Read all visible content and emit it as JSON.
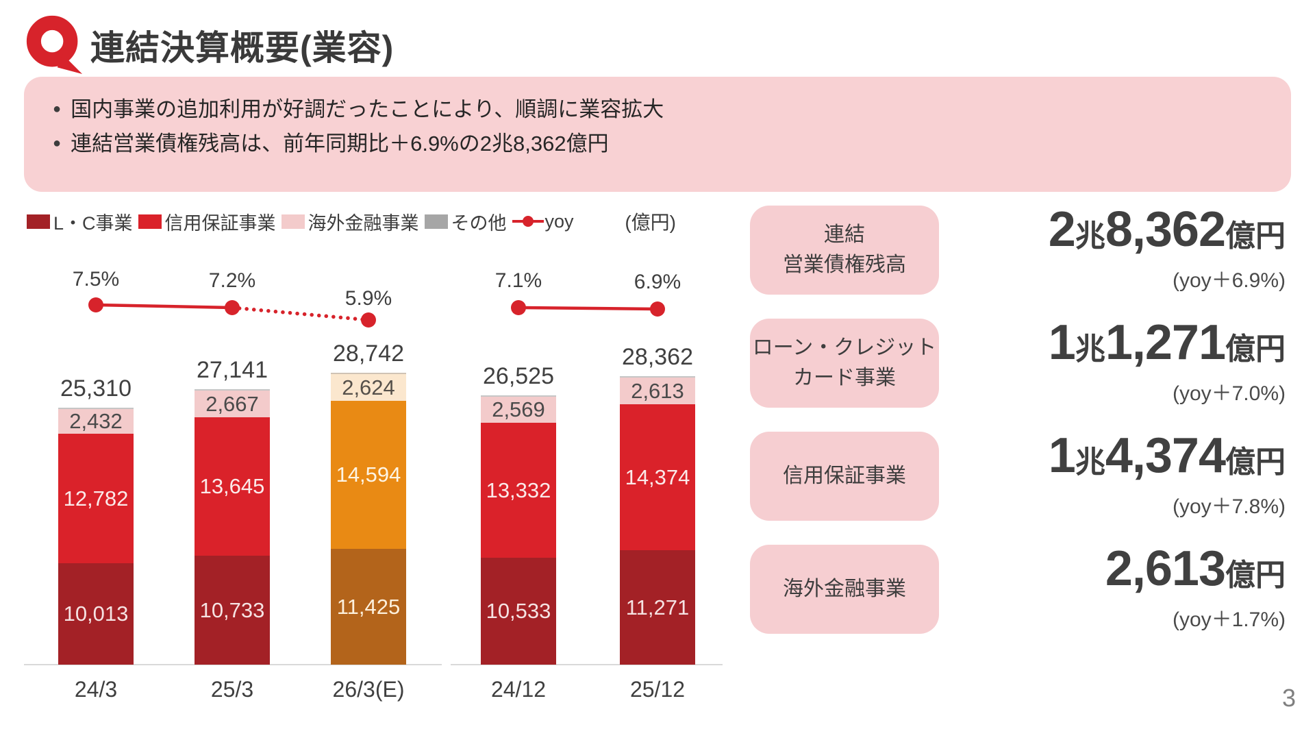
{
  "page": {
    "title": "連結決算概要(業容)",
    "page_number": "3"
  },
  "banner": {
    "bullets": [
      "国内事業の追加利用が好調だったことにより、順調に業容拡大",
      "連結営業債権残高は、前年同期比＋6.9%の2兆8,362億円"
    ]
  },
  "colors": {
    "accent_red": "#d7232b",
    "banner_pink": "#f8d1d3",
    "card_pink": "#f6ced1"
  },
  "chart_data": {
    "type": "bar",
    "stacked": true,
    "unit_label": "(億円)",
    "legend": [
      {
        "label": "L・C事業",
        "color": "#a32126",
        "marker": "square"
      },
      {
        "label": "信用保証事業",
        "color": "#da222a",
        "marker": "square"
      },
      {
        "label": "海外金融事業",
        "color": "#f3cbcb",
        "marker": "square"
      },
      {
        "label": "その他",
        "color": "#a6a6a6",
        "marker": "square"
      },
      {
        "label": "yoy",
        "color": "#d7232b",
        "marker": "line-dot"
      }
    ],
    "categories": [
      "24/3",
      "25/3",
      "26/3(E)",
      "24/12",
      "25/12"
    ],
    "totals": [
      25310,
      27141,
      28742,
      26525,
      28362
    ],
    "yoy_line_percent": [
      7.5,
      7.2,
      5.9,
      7.1,
      6.9
    ],
    "series": [
      {
        "name": "L・C事業",
        "values": [
          10013,
          10733,
          11425,
          10533,
          11271
        ]
      },
      {
        "name": "信用保証事業",
        "values": [
          12782,
          13645,
          14594,
          13332,
          14374
        ]
      },
      {
        "name": "海外金融事業",
        "values": [
          2432,
          2667,
          2624,
          2569,
          2613
        ]
      },
      {
        "name": "yoy",
        "type": "line",
        "values": [
          7.5,
          7.2,
          5.9,
          7.1,
          6.9
        ]
      }
    ],
    "groups": [
      {
        "bars": [
          {
            "category": "24/3",
            "total": 25310,
            "total_label": "25,310",
            "yoy": "7.5%",
            "segments": [
              {
                "name": "L・C事業",
                "value": 10013,
                "label": "10,013",
                "color": "#a32126",
                "text_color": "#f6e3e3"
              },
              {
                "name": "信用保証事業",
                "value": 12782,
                "label": "12,782",
                "color": "#da222a",
                "text_color": "#fbeaea"
              },
              {
                "name": "海外金融事業",
                "value": 2432,
                "label": "2,432",
                "color": "#f3cbcb",
                "text_color": "#4a4a4a"
              },
              {
                "name": "その他",
                "value": 83,
                "label": "",
                "color": "#c6c6c6",
                "text_color": "#4a4a4a"
              }
            ]
          },
          {
            "category": "25/3",
            "total": 27141,
            "total_label": "27,141",
            "yoy": "7.2%",
            "segments": [
              {
                "name": "L・C事業",
                "value": 10733,
                "label": "10,733",
                "color": "#a32126",
                "text_color": "#f6e3e3"
              },
              {
                "name": "信用保証事業",
                "value": 13645,
                "label": "13,645",
                "color": "#da222a",
                "text_color": "#fbeaea"
              },
              {
                "name": "海外金融事業",
                "value": 2667,
                "label": "2,667",
                "color": "#f3cbcb",
                "text_color": "#4a4a4a"
              },
              {
                "name": "その他",
                "value": 96,
                "label": "",
                "color": "#c6c6c6",
                "text_color": "#4a4a4a"
              }
            ]
          },
          {
            "category": "26/3(E)",
            "total": 28742,
            "total_label": "28,742",
            "yoy": "5.9%",
            "forecast": true,
            "segments": [
              {
                "name": "L・C事業",
                "value": 11425,
                "label": "11,425",
                "color": "#b3641b",
                "text_color": "#fdf0dc"
              },
              {
                "name": "信用保証事業",
                "value": 14594,
                "label": "14,594",
                "color": "#e98a14",
                "text_color": "#fdf4e4"
              },
              {
                "name": "海外金融事業",
                "value": 2624,
                "label": "2,624",
                "color": "#fbe7ce",
                "text_color": "#55504a"
              },
              {
                "name": "その他",
                "value": 99,
                "label": "",
                "color": "#cfc3b4",
                "text_color": "#55504a"
              }
            ]
          },
          {
            "category": "24/12",
            "total": 26525,
            "total_label": "26,525",
            "yoy": "7.1%",
            "segments": [
              {
                "name": "L・C事業",
                "value": 10533,
                "label": "10,533",
                "color": "#a32126",
                "text_color": "#f6e3e3"
              },
              {
                "name": "信用保証事業",
                "value": 13332,
                "label": "13,332",
                "color": "#da222a",
                "text_color": "#fbeaea"
              },
              {
                "name": "海外金融事業",
                "value": 2569,
                "label": "2,569",
                "color": "#f3cbcb",
                "text_color": "#4a4a4a"
              },
              {
                "name": "その他",
                "value": 91,
                "label": "",
                "color": "#c6c6c6",
                "text_color": "#4a4a4a"
              }
            ]
          },
          {
            "category": "25/12",
            "total": 28362,
            "total_label": "28,362",
            "yoy": "6.9%",
            "segments": [
              {
                "name": "L・C事業",
                "value": 11271,
                "label": "11,271",
                "color": "#a32126",
                "text_color": "#f6e3e3"
              },
              {
                "name": "信用保証事業",
                "value": 14374,
                "label": "14,374",
                "color": "#da222a",
                "text_color": "#fbeaea"
              },
              {
                "name": "海外金融事業",
                "value": 2613,
                "label": "2,613",
                "color": "#f3cbcb",
                "text_color": "#4a4a4a"
              },
              {
                "name": "その他",
                "value": 104,
                "label": "",
                "color": "#c6c6c6",
                "text_color": "#4a4a4a"
              }
            ]
          }
        ]
      }
    ]
  },
  "summary": [
    {
      "label_line1": "連結",
      "label_line2": "営業債権残高",
      "num_prefix": "2",
      "cho_unit": "兆",
      "num_main": "8,362",
      "unit": "億円",
      "yoy_note": "(yoy＋6.9%)"
    },
    {
      "label_line1": "ローン・クレジット",
      "label_line2": "カード事業",
      "num_prefix": "1",
      "cho_unit": "兆",
      "num_main": "1,271",
      "unit": "億円",
      "yoy_note": "(yoy＋7.0%)"
    },
    {
      "label_line1": "信用保証事業",
      "label_line2": "",
      "num_prefix": "1",
      "cho_unit": "兆",
      "num_main": "4,374",
      "unit": "億円",
      "yoy_note": "(yoy＋7.8%)"
    },
    {
      "label_line1": "海外金融事業",
      "label_line2": "",
      "num_prefix": "",
      "cho_unit": "",
      "num_main": "2,613",
      "unit": "億円",
      "yoy_note": "(yoy＋1.7%)"
    }
  ]
}
